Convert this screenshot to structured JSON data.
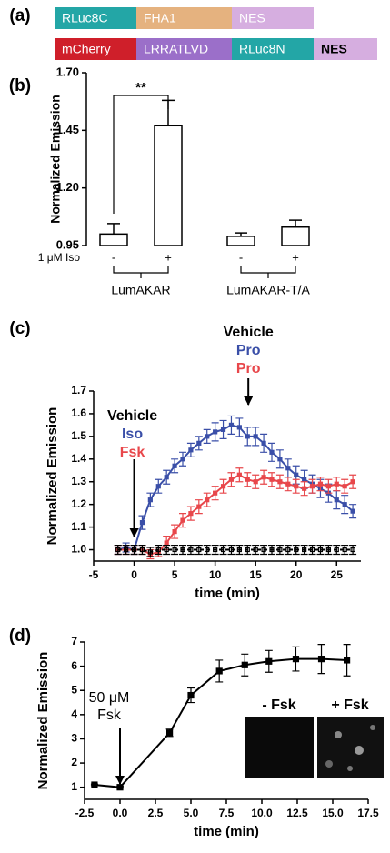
{
  "panel_labels": [
    "(a)",
    "(b)",
    "(c)",
    "(d)"
  ],
  "constructs": [
    [
      {
        "text": "RLuc8C",
        "color": "#23a6a6"
      },
      {
        "text": "FHA1",
        "color": "#e5b27f"
      },
      {
        "text": "NES",
        "color": "#d6aee0"
      }
    ],
    [
      {
        "text": "mCherry",
        "color": "#cf1f2a"
      },
      {
        "text": "LRRATLVD",
        "color": "#9b6fc9"
      },
      {
        "text": "RLuc8N",
        "color": "#23a6a6"
      },
      {
        "text": "NES",
        "color": "#d6aee0"
      }
    ]
  ],
  "chart_data": [
    {
      "type": "bar",
      "y_label": "Normalized  Emission",
      "x_row_label": "1 μM Iso",
      "categories": [
        "-",
        "+",
        "-",
        "+"
      ],
      "groups": [
        "LumAKAR",
        "LumAKAR-T/A"
      ],
      "significance": "**",
      "values": [
        1.0,
        1.47,
        0.99,
        1.03
      ],
      "errors": [
        0.045,
        0.11,
        0.015,
        0.03
      ],
      "color": "#ffffff",
      "ylim": [
        0.95,
        1.7
      ],
      "yticks": [
        0.95,
        {
          "value": 1.2,
          "label": "1.20"
        },
        1.45,
        {
          "value": 1.7,
          "label": "1.70"
        }
      ]
    },
    {
      "type": "line",
      "x_label": "time (min)",
      "y_label": "Normalized Emission",
      "x": [
        -2,
        -1,
        0,
        1,
        2,
        3,
        4,
        5,
        6,
        7,
        8,
        9,
        10,
        11,
        12,
        13,
        14,
        15,
        16,
        17,
        18,
        19,
        20,
        21,
        22,
        23,
        24,
        25,
        26,
        27
      ],
      "series": [
        {
          "name": "Iso",
          "color": "#3a4fa8",
          "dashed": false,
          "values": [
            1.0,
            1.01,
            1.0,
            1.12,
            1.22,
            1.28,
            1.32,
            1.37,
            1.4,
            1.44,
            1.47,
            1.5,
            1.52,
            1.53,
            1.55,
            1.54,
            1.5,
            1.5,
            1.47,
            1.43,
            1.4,
            1.36,
            1.33,
            1.31,
            1.29,
            1.27,
            1.25,
            1.22,
            1.2,
            1.17
          ],
          "errors": [
            0.02,
            0.02,
            0.02,
            0.03,
            0.03,
            0.03,
            0.03,
            0.03,
            0.03,
            0.03,
            0.03,
            0.03,
            0.04,
            0.04,
            0.04,
            0.04,
            0.04,
            0.04,
            0.04,
            0.04,
            0.04,
            0.04,
            0.04,
            0.04,
            0.04,
            0.04,
            0.04,
            0.04,
            0.04,
            0.03
          ]
        },
        {
          "name": "Fsk",
          "color": "#e8474b",
          "dashed": false,
          "values": [
            1.0,
            1.0,
            1.0,
            1.0,
            0.98,
            0.99,
            1.03,
            1.08,
            1.13,
            1.16,
            1.19,
            1.22,
            1.25,
            1.28,
            1.31,
            1.33,
            1.31,
            1.3,
            1.32,
            1.31,
            1.3,
            1.29,
            1.28,
            1.27,
            1.28,
            1.29,
            1.28,
            1.29,
            1.28,
            1.3
          ],
          "errors": [
            0.02,
            0.02,
            0.02,
            0.02,
            0.02,
            0.02,
            0.03,
            0.03,
            0.03,
            0.03,
            0.03,
            0.03,
            0.03,
            0.03,
            0.03,
            0.03,
            0.03,
            0.03,
            0.03,
            0.03,
            0.03,
            0.03,
            0.03,
            0.03,
            0.03,
            0.03,
            0.03,
            0.03,
            0.03,
            0.03
          ]
        },
        {
          "name": "Vehicle",
          "color": "#000000",
          "dashed": true,
          "values": [
            1.0,
            1.0,
            1.0,
            1.0,
            0.99,
            1.0,
            1.0,
            1.0,
            1.0,
            1.0,
            1.0,
            1.0,
            1.0,
            1.0,
            1.0,
            1.0,
            1.0,
            1.0,
            1.0,
            1.0,
            1.0,
            1.0,
            1.0,
            1.0,
            1.0,
            1.0,
            1.0,
            1.0,
            1.0,
            1.0
          ],
          "errors": [
            0.02,
            0.02,
            0.02,
            0.02,
            0.02,
            0.02,
            0.02,
            0.02,
            0.02,
            0.02,
            0.02,
            0.02,
            0.02,
            0.02,
            0.02,
            0.02,
            0.02,
            0.02,
            0.02,
            0.02,
            0.02,
            0.02,
            0.02,
            0.02,
            0.02,
            0.02,
            0.02,
            0.02,
            0.02,
            0.02
          ]
        }
      ],
      "annotations": [
        {
          "text": "Vehicle",
          "color": "#000000"
        },
        {
          "text": "Pro",
          "color": "#3a4fa8"
        },
        {
          "text": "Pro",
          "color": "#e8474b"
        }
      ],
      "xlim": [
        -5,
        28
      ],
      "xticks": [
        -5,
        0,
        5,
        10,
        15,
        20,
        25
      ],
      "ylim": [
        0.95,
        1.7
      ],
      "yticks": [
        {
          "value": 1.0,
          "label": "1.0"
        },
        1.1,
        1.2,
        1.3,
        1.4,
        1.5,
        1.6,
        1.7
      ]
    },
    {
      "type": "line",
      "x_label": "time (min)",
      "y_label": "Normalized Emission",
      "x": [
        -1.8,
        0,
        3.5,
        5,
        7,
        8.8,
        10.5,
        12.4,
        14.2,
        16
      ],
      "series": [
        {
          "color": "#000000",
          "dashed": false,
          "values": [
            1.1,
            1.0,
            3.25,
            4.8,
            5.8,
            6.05,
            6.2,
            6.3,
            6.3,
            6.25
          ],
          "errors": [
            0.03,
            0.03,
            0.15,
            0.3,
            0.45,
            0.45,
            0.45,
            0.5,
            0.6,
            0.65
          ]
        }
      ],
      "annotations": [
        {
          "text": "50 μM"
        },
        {
          "text": "Fsk"
        }
      ],
      "inset_labels": [
        "- Fsk",
        "+ Fsk"
      ],
      "xlim": [
        -2.5,
        17.5
      ],
      "xticks": [
        -2.5,
        {
          "value": 0,
          "label": "0.0"
        },
        2.5,
        {
          "value": 5,
          "label": "5.0"
        },
        7.5,
        {
          "value": 10,
          "label": "10.0"
        },
        12.5,
        {
          "value": 15,
          "label": "15.0"
        },
        17.5
      ],
      "ylim": [
        0.5,
        7
      ],
      "yticks": [
        1,
        2,
        3,
        4,
        5,
        6,
        7
      ]
    }
  ]
}
